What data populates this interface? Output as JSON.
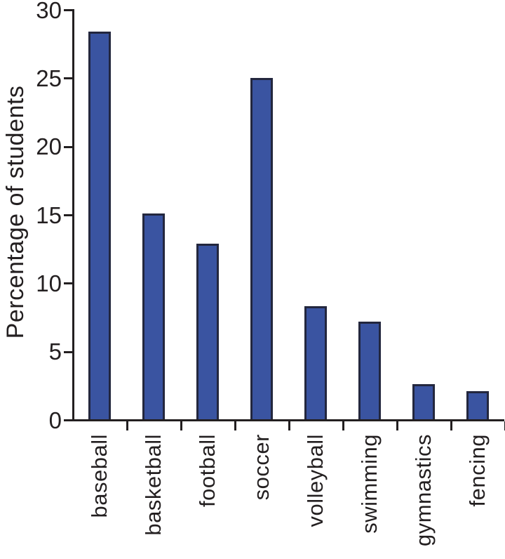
{
  "chart_data": {
    "type": "bar",
    "ylabel": "Percentage of students",
    "categories": [
      "baseball",
      "basketball",
      "football",
      "soccer",
      "volleyball",
      "swimming",
      "gymnastics",
      "fencing"
    ],
    "values": [
      28.2,
      14.9,
      12.7,
      24.8,
      8.1,
      7.0,
      2.4,
      1.9
    ],
    "yticks": [
      0,
      5,
      10,
      15,
      20,
      25,
      30
    ],
    "ylim": [
      0,
      30
    ],
    "grid": false,
    "legend": false,
    "bar_color": "#3a54a1",
    "bar_border_color": "#23273e",
    "axis_color": "#231f20",
    "text_color": "#231f20",
    "background": "#ffffff"
  }
}
